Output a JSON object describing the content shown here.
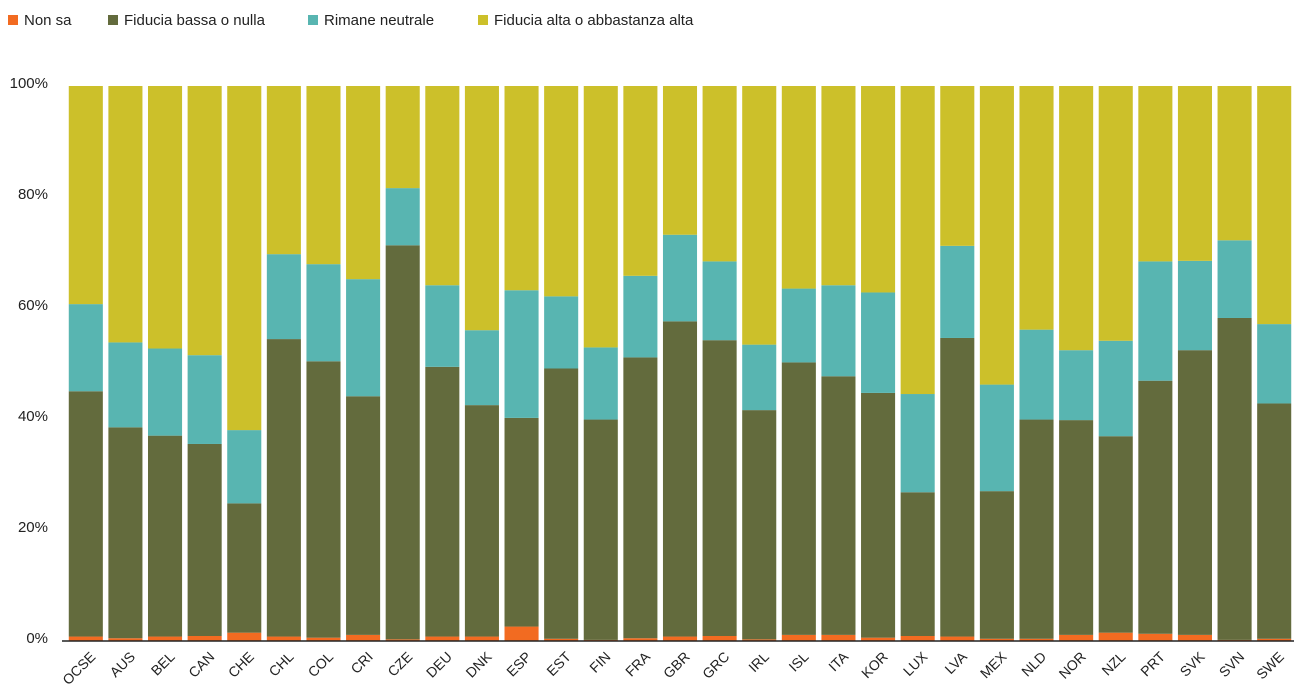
{
  "chart_data": {
    "type": "stacked_bar",
    "categories": [
      "OCSE",
      "AUS",
      "BEL",
      "CAN",
      "CHE",
      "CHL",
      "COL",
      "CRI",
      "CZE",
      "DEU",
      "DNK",
      "ESP",
      "EST",
      "FIN",
      "FRA",
      "GBR",
      "GRC",
      "IRL",
      "ISL",
      "ITA",
      "KOR",
      "LUX",
      "LVA",
      "MEX",
      "NLD",
      "NOR",
      "NZL",
      "PRT",
      "SVK",
      "SVN",
      "SWE"
    ],
    "series": [
      {
        "name": "Non sa",
        "color": "#f26b21",
        "values": [
          0.8,
          0.5,
          0.8,
          0.9,
          1.5,
          0.8,
          0.6,
          1.1,
          0.3,
          0.8,
          0.8,
          2.6,
          0.4,
          0.2,
          0.5,
          0.8,
          0.9,
          0.3,
          1.1,
          1.1,
          0.6,
          0.9,
          0.8,
          0.4,
          0.4,
          1.1,
          1.5,
          1.3,
          1.1,
          0.2,
          0.4
        ]
      },
      {
        "name": "Fiducia bassa o nulla",
        "color": "#636b3d",
        "values": [
          44.2,
          38,
          36.2,
          34.6,
          23.3,
          53.6,
          49.8,
          43,
          71,
          48.6,
          41.7,
          37.6,
          48.7,
          39.7,
          50.6,
          56.8,
          53.3,
          41.3,
          49.1,
          46.6,
          44.1,
          25.9,
          53.8,
          26.6,
          39.5,
          38.7,
          35.4,
          45.6,
          51.3,
          58,
          42.4
        ]
      },
      {
        "name": "Rimane neutrale",
        "color": "#58b5b1",
        "values": [
          15.7,
          15.3,
          15.7,
          16,
          13.2,
          15.3,
          17.5,
          21.1,
          10.3,
          14.7,
          13.5,
          23,
          13,
          13,
          14.7,
          15.6,
          14.2,
          11.8,
          13.3,
          16.4,
          18.1,
          17.7,
          16.6,
          19.2,
          16.2,
          12.6,
          17.2,
          21.5,
          16.1,
          14,
          14.3
        ]
      },
      {
        "name": "Fiducia alta o abbastanza alta",
        "color": "#ccc02a",
        "values": [
          39.3,
          46.2,
          47.3,
          48.5,
          62,
          30.3,
          32.1,
          34.8,
          18.4,
          35.9,
          44,
          36.8,
          37.9,
          47.1,
          34.2,
          26.8,
          31.6,
          46.6,
          36.5,
          35.9,
          37.2,
          55.5,
          28.8,
          53.8,
          43.9,
          47.6,
          45.9,
          31.6,
          31.5,
          27.8,
          42.9
        ]
      }
    ],
    "ylim": [
      0,
      100
    ],
    "yticks": [
      {
        "value": 0,
        "label": "0%"
      },
      {
        "value": 20,
        "label": "20%"
      },
      {
        "value": 40,
        "label": "40%"
      },
      {
        "value": 60,
        "label": "60%"
      },
      {
        "value": 80,
        "label": "80%"
      },
      {
        "value": 100,
        "label": "100%"
      }
    ],
    "grid": false,
    "legend": "top-left"
  }
}
